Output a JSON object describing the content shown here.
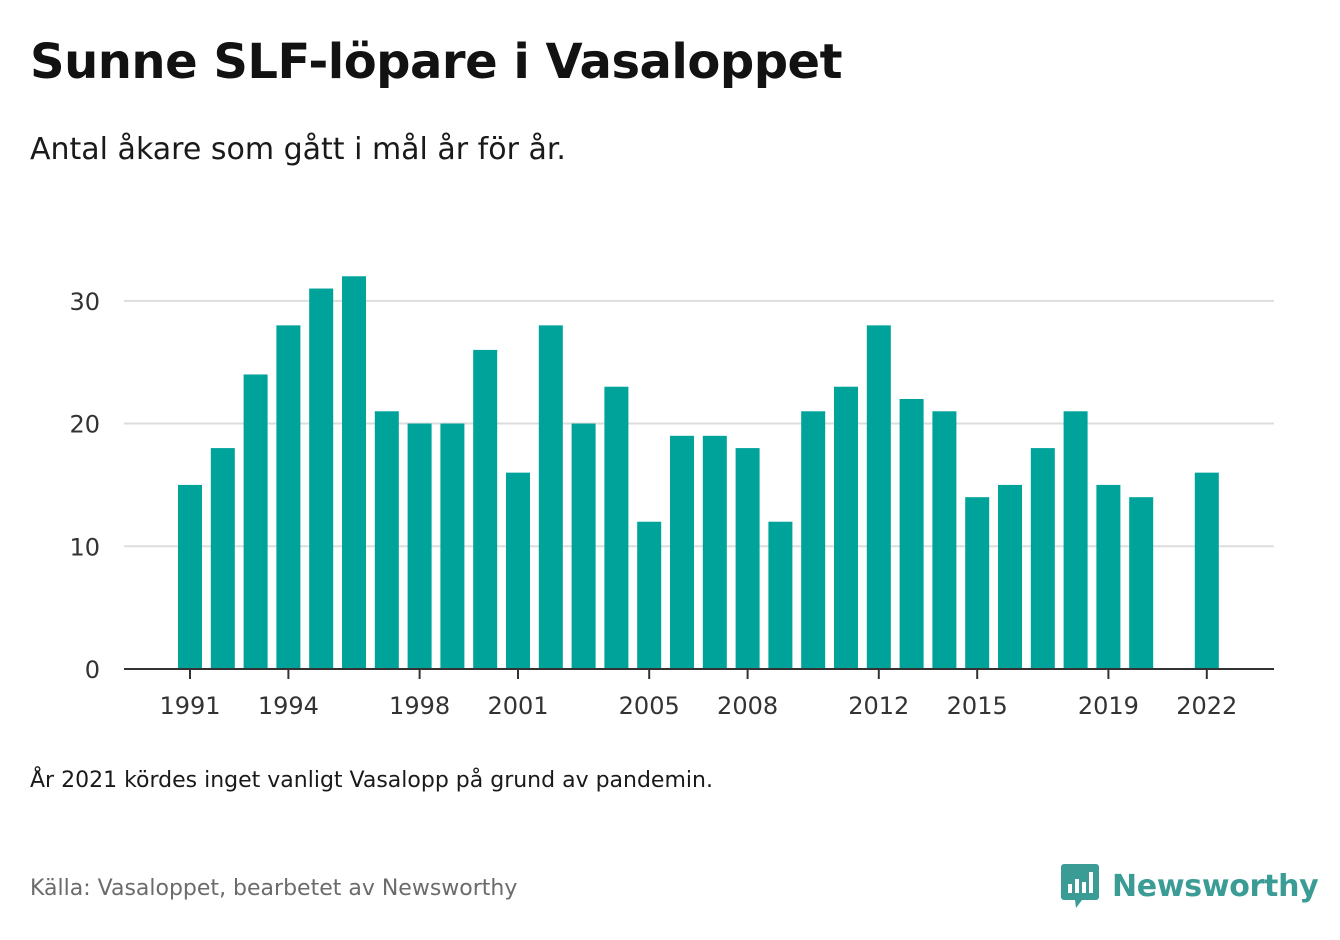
{
  "header": {
    "title": "Sunne SLF-löpare i Vasaloppet",
    "subtitle": "Antal åkare som gått i mål år för år."
  },
  "note": "År 2021 kördes inget vanligt Vasalopp på grund av pandemin.",
  "source": "Källa: Vasaloppet, bearbetet av Newsworthy",
  "brand": {
    "name": "Newsworthy",
    "icon": "newsworthy-logo-icon",
    "color": "#3a9c95"
  },
  "colors": {
    "bar": "#00a39a",
    "grid": "#dddddd",
    "axis": "#333333",
    "tick_text": "#333333"
  },
  "chart_data": {
    "type": "bar",
    "title": "Sunne SLF-löpare i Vasaloppet",
    "subtitle": "Antal åkare som gått i mål år för år.",
    "categories": [
      1991,
      1992,
      1993,
      1994,
      1995,
      1996,
      1997,
      1998,
      1999,
      2000,
      2001,
      2002,
      2003,
      2004,
      2005,
      2006,
      2007,
      2008,
      2009,
      2010,
      2011,
      2012,
      2013,
      2014,
      2015,
      2016,
      2017,
      2018,
      2019,
      2020,
      2021,
      2022
    ],
    "values": [
      15,
      18,
      24,
      28,
      31,
      32,
      21,
      20,
      20,
      26,
      16,
      28,
      20,
      23,
      12,
      19,
      19,
      18,
      12,
      21,
      23,
      28,
      22,
      21,
      14,
      15,
      18,
      21,
      15,
      14,
      null,
      16
    ],
    "x_tick_labels": [
      "1991",
      "1994",
      "1998",
      "2001",
      "2005",
      "2008",
      "2012",
      "2015",
      "2019",
      "2022"
    ],
    "y_ticks": [
      0,
      10,
      20,
      30
    ],
    "ylim": [
      0,
      33
    ],
    "xlabel": "",
    "ylabel": "",
    "grid": "horizontal",
    "legend": "none"
  }
}
